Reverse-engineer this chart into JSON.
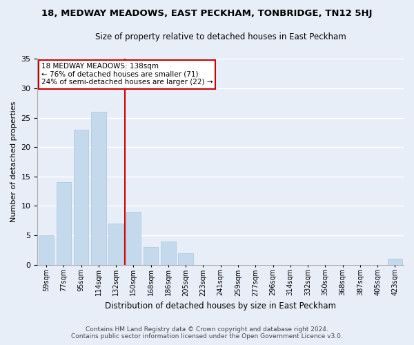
{
  "title": "18, MEDWAY MEADOWS, EAST PECKHAM, TONBRIDGE, TN12 5HJ",
  "subtitle": "Size of property relative to detached houses in East Peckham",
  "xlabel": "Distribution of detached houses by size in East Peckham",
  "ylabel": "Number of detached properties",
  "bar_labels": [
    "59sqm",
    "77sqm",
    "95sqm",
    "114sqm",
    "132sqm",
    "150sqm",
    "168sqm",
    "186sqm",
    "205sqm",
    "223sqm",
    "241sqm",
    "259sqm",
    "277sqm",
    "296sqm",
    "314sqm",
    "332sqm",
    "350sqm",
    "368sqm",
    "387sqm",
    "405sqm",
    "423sqm"
  ],
  "bar_values": [
    5,
    14,
    23,
    26,
    7,
    9,
    3,
    4,
    2,
    0,
    0,
    0,
    0,
    0,
    0,
    0,
    0,
    0,
    0,
    0,
    1
  ],
  "bar_color": "#c5d9ed",
  "bar_edge_color": "#a8c4dc",
  "vline_x": 4.5,
  "vline_color": "#cc0000",
  "ylim": [
    0,
    35
  ],
  "yticks": [
    0,
    5,
    10,
    15,
    20,
    25,
    30,
    35
  ],
  "annotation_text_line1": "18 MEDWAY MEADOWS: 138sqm",
  "annotation_text_line2": "← 76% of detached houses are smaller (71)",
  "annotation_text_line3": "24% of semi-detached houses are larger (22) →",
  "footer_line1": "Contains HM Land Registry data © Crown copyright and database right 2024.",
  "footer_line2": "Contains public sector information licensed under the Open Government Licence v3.0.",
  "background_color": "#e8eef8",
  "plot_background": "#e8eef8"
}
